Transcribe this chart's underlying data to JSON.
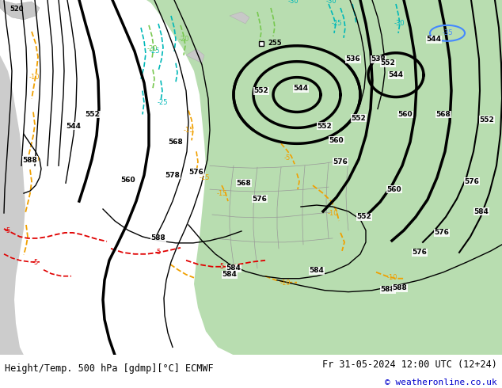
{
  "title_left": "Height/Temp. 500 hPa [gdmp][°C] ECMWF",
  "title_right": "Fr 31-05-2024 12:00 UTC (12+24)",
  "copyright": "© weatheronline.co.uk",
  "map_bg": "#e8e8e8",
  "land_bg": "#d2d2d2",
  "green_fill": "#b8ddb0",
  "title_fontsize": 8.5,
  "copyright_color": "#0000cc",
  "bottom_bar_color": "#ffffff",
  "orange": "#f0a000",
  "red": "#e00000",
  "teal": "#00b8b8",
  "lgreen": "#78c850",
  "blue": "#4488ff"
}
